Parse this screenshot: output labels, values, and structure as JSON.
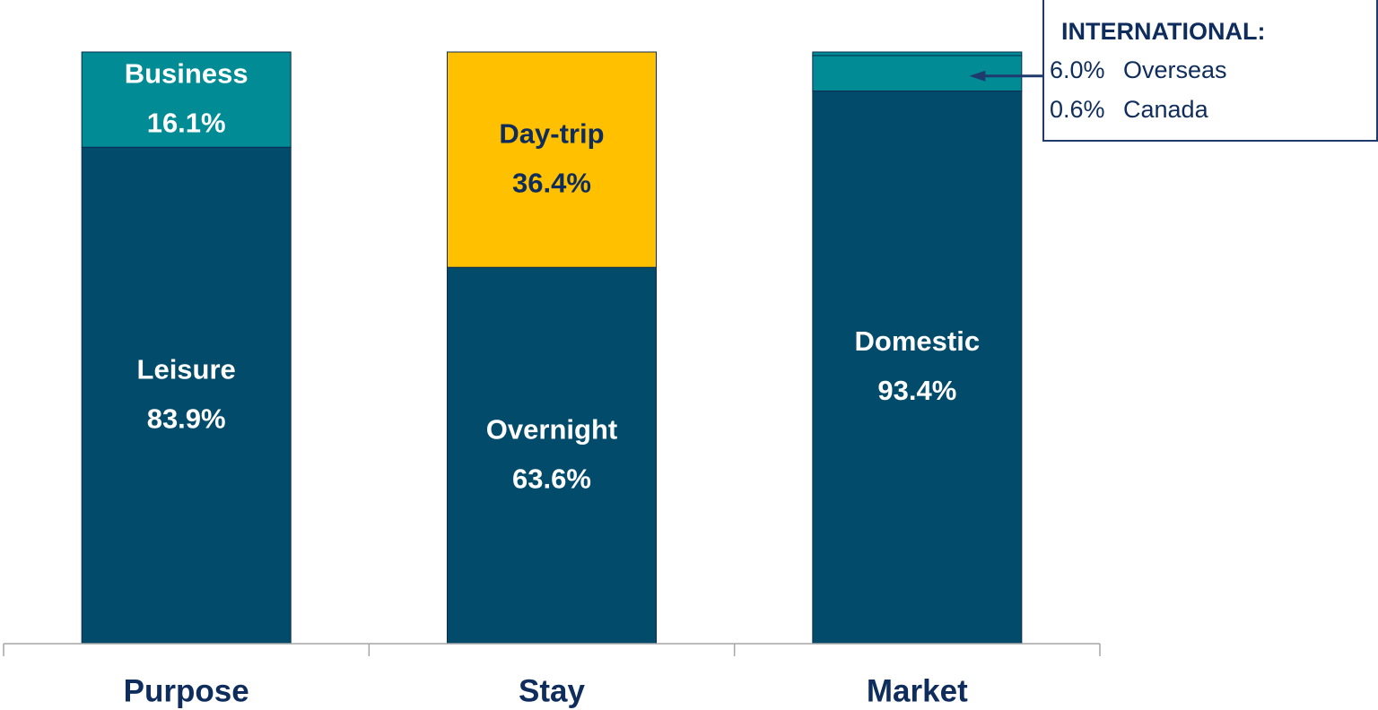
{
  "chart_data": {
    "type": "stacked-bar",
    "categories": [
      "Purpose",
      "Stay",
      "Market"
    ],
    "ylim": [
      0,
      100
    ],
    "bars": [
      {
        "segments": [
          {
            "name": "Leisure",
            "value": 83.9,
            "value_label": "83.9%",
            "color": "#034b6b"
          },
          {
            "name": "Business",
            "value": 16.1,
            "value_label": "16.1%",
            "color": "#008b95"
          }
        ]
      },
      {
        "segments": [
          {
            "name": "Overnight",
            "value": 63.6,
            "value_label": "63.6%",
            "color": "#034b6b"
          },
          {
            "name": "Day-trip",
            "value": 36.4,
            "value_label": "36.4%",
            "color": "#ffc000"
          }
        ]
      },
      {
        "segments": [
          {
            "name": "Domestic",
            "value": 93.4,
            "value_label": "93.4%",
            "color": "#034b6b"
          }
        ],
        "callout": {
          "title": "INTERNATIONAL:",
          "segments": [
            {
              "name": "Overseas",
              "value": 6.0,
              "value_label": "6.0%",
              "color": "#008b95"
            },
            {
              "name": "Canada",
              "value": 0.6,
              "value_label": "0.6%",
              "color": "#008b95"
            }
          ]
        }
      }
    ]
  }
}
